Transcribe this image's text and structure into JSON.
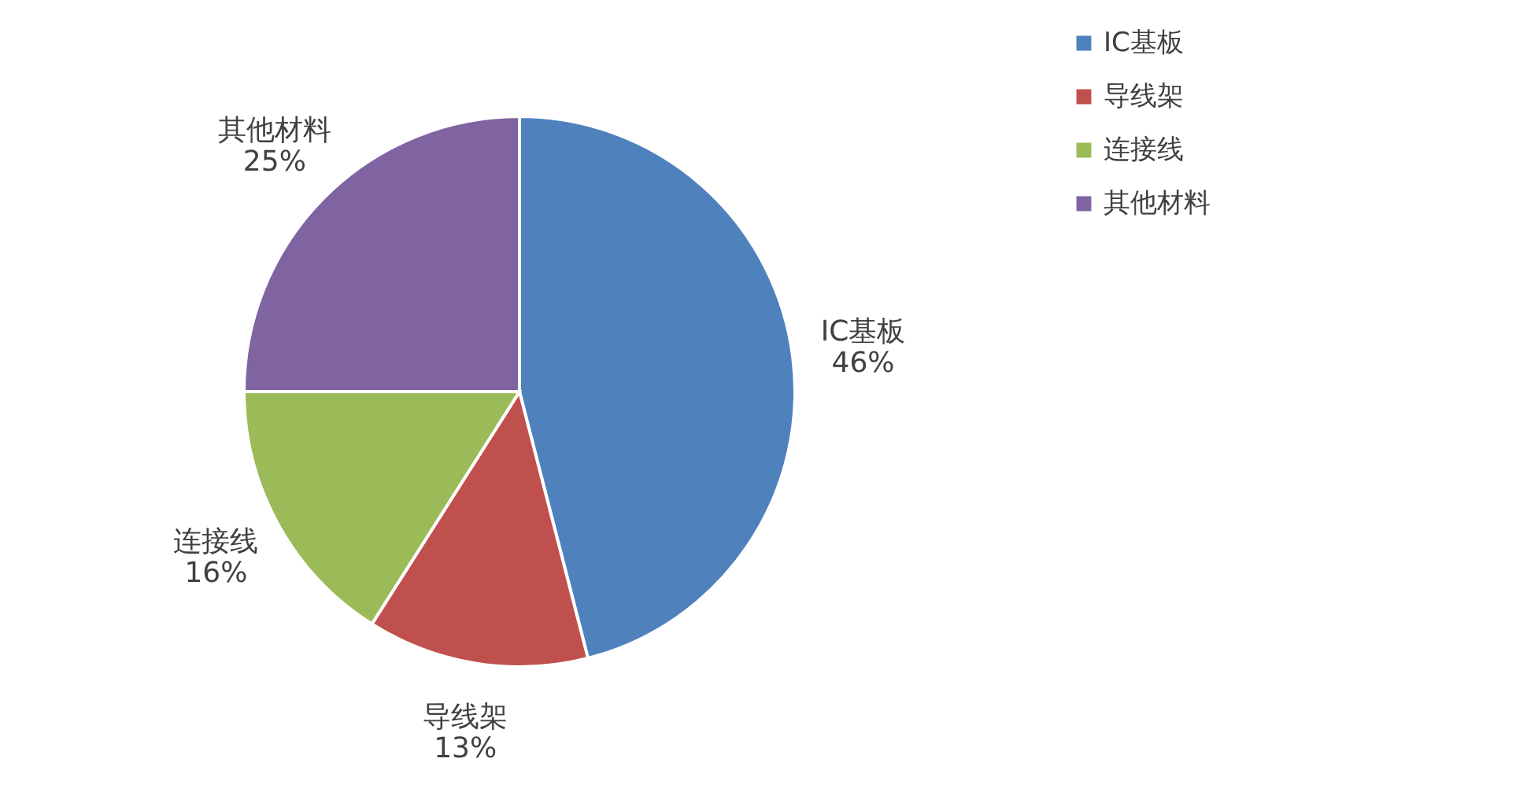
{
  "chart_data": {
    "type": "pie",
    "categories": [
      "IC基板",
      "导线架",
      "连接线",
      "其他材料"
    ],
    "values": [
      46,
      13,
      16,
      25
    ],
    "colors": [
      "#4f81bd",
      "#c0504d",
      "#9bbb59",
      "#8064a2"
    ],
    "value_labels": [
      "46%",
      "13%",
      "16%",
      "25%"
    ],
    "legend": "right"
  }
}
